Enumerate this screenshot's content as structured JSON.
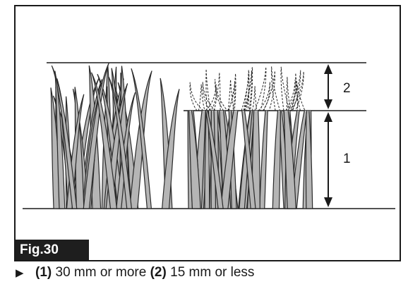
{
  "figure": {
    "badge": "Fig.30",
    "labels": {
      "upper": "2",
      "lower": "1"
    }
  },
  "caption": {
    "marker": "▶",
    "item1_num": "(1)",
    "item1_text": " 30 mm or more ",
    "item2_num": "(2)",
    "item2_text": " 15 mm or less"
  },
  "colors": {
    "blade_fill": "#b5b5b5",
    "blade_stroke": "#2a2a2a",
    "line": "#1a1a1a"
  }
}
